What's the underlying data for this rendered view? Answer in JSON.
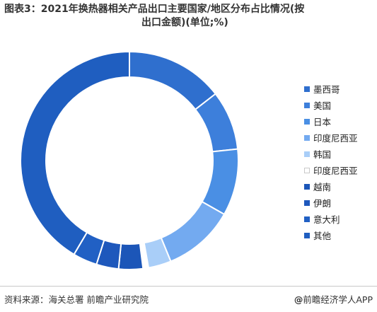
{
  "title": {
    "line1": "图表3：2021年换热器相关产品出口主要国家/地区分布占比情况(按",
    "line2": "出口金额)(单位;%)"
  },
  "chart_data": {
    "type": "pie",
    "donut": true,
    "unit": "%",
    "categories": [
      "墨西哥",
      "美国",
      "日本",
      "印度尼西亚",
      "韩国",
      "印度尼西亚",
      "越南",
      "伊朗",
      "意大利",
      "其他"
    ],
    "values": [
      14.5,
      8.8,
      9.9,
      10.6,
      3.4,
      0.8,
      3.6,
      3.3,
      3.6,
      41.5
    ],
    "colors": [
      "#2f6fce",
      "#3d7fdb",
      "#4a8fe4",
      "#73aaf0",
      "#a9cef8",
      "#ffffff",
      "#1c56b8",
      "#1e58bc",
      "#2160c4",
      "#1f5ec0"
    ],
    "legend_position": "right"
  },
  "source": "资料来源：海关总署 前瞻产业研究院",
  "brand": {
    "symbol": "@",
    "text": "前瞻经济学人APP"
  }
}
